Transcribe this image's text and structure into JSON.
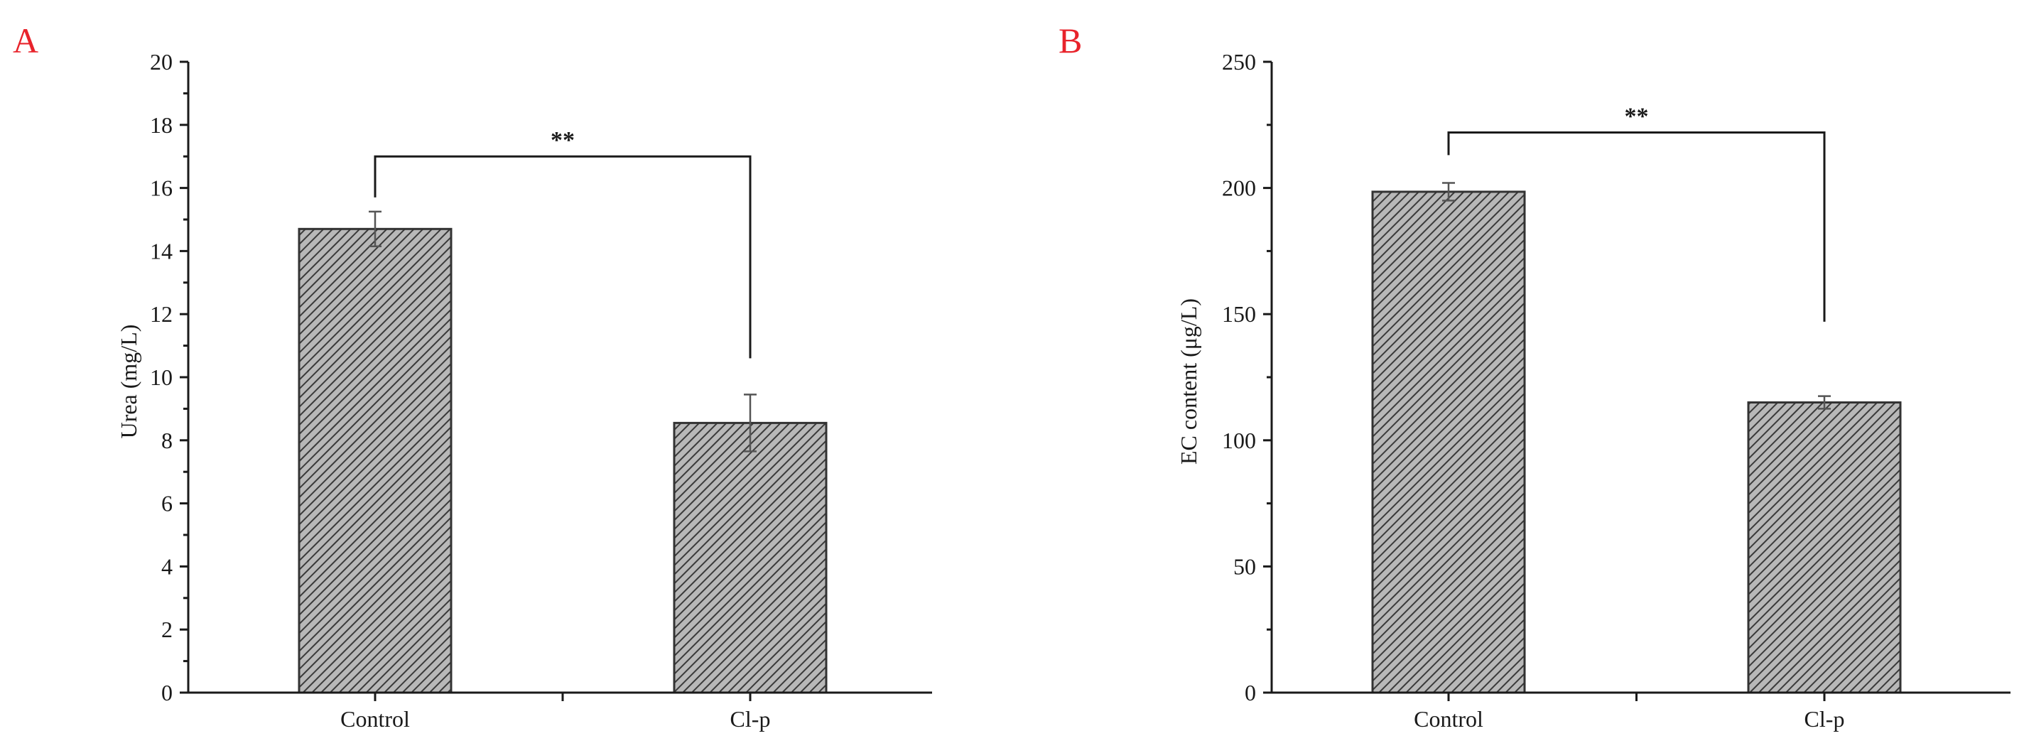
{
  "colors": {
    "panel_letter": "#e8232b",
    "bar_fill": "#b8b8b8",
    "hatch_line": "#3a3a3a",
    "axis": "#1a1a1a"
  },
  "chart_data": [
    {
      "type": "bar",
      "panel_label": "A",
      "categories": [
        "Control",
        "Cl-p"
      ],
      "values": [
        14.7,
        8.55
      ],
      "errors": [
        0.55,
        0.9
      ],
      "xlabel": "",
      "ylabel": "Urea (mg/L)",
      "ylim": [
        0,
        20
      ],
      "yticks": [
        0,
        2,
        4,
        6,
        8,
        10,
        12,
        14,
        16,
        18,
        20
      ],
      "ytick_labels": [
        "0",
        "2",
        "4",
        "6",
        "8",
        "10",
        "12",
        "14",
        "16",
        "18",
        "20"
      ],
      "minor_ticks": true,
      "grid": false,
      "bar_pattern": "diagonal hatch",
      "significance": {
        "label": "**",
        "between": [
          "Control",
          "Cl-p"
        ],
        "bracket_y": 17.0,
        "left_drop_to": 15.7,
        "right_drop_to": 10.6
      }
    },
    {
      "type": "bar",
      "panel_label": "B",
      "categories": [
        "Control",
        "Cl-p"
      ],
      "values": [
        198.5,
        115
      ],
      "errors": [
        3.5,
        2.5
      ],
      "xlabel": "",
      "ylabel": "EC content (μg/L)",
      "ylim": [
        0,
        250
      ],
      "yticks": [
        0,
        50,
        100,
        150,
        200,
        250
      ],
      "ytick_labels": [
        "0",
        "50",
        "100",
        "150",
        "200",
        "250"
      ],
      "minor_ticks": true,
      "grid": false,
      "bar_pattern": "diagonal hatch",
      "significance": {
        "label": "**",
        "between": [
          "Control",
          "Cl-p"
        ],
        "bracket_y": 222,
        "left_drop_to": 213,
        "right_drop_to": 147
      }
    }
  ]
}
